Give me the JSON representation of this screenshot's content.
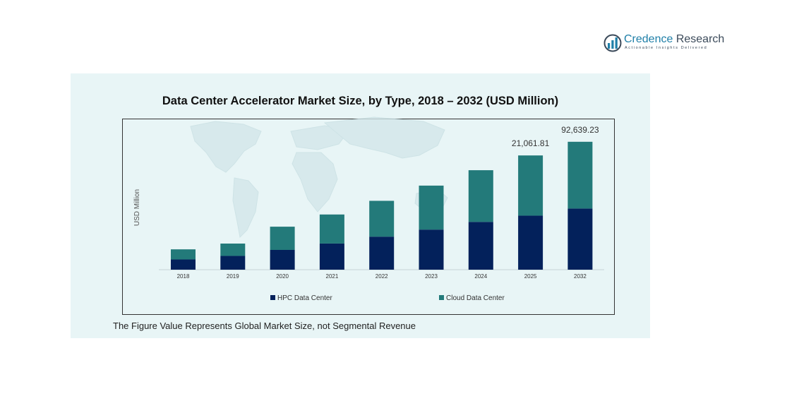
{
  "brand": {
    "name_part1": "Credence",
    "name_part2": "Research",
    "tagline": "Actionable Insights Delivered",
    "colors": {
      "accent": "#1f7fa8",
      "text": "#3b4a5a"
    }
  },
  "footnote": "The Figure Value Represents Global Market Size, not Segmental Revenue",
  "chart_data": {
    "type": "bar",
    "stacked": true,
    "title": "Data Center Accelerator Market Size, by Type, 2018 – 2032 (USD Million)",
    "ylabel": "USD Million",
    "xlabel": "",
    "categories": [
      "2018",
      "2019",
      "2020",
      "2021",
      "2022",
      "2023",
      "2024",
      "2025",
      "2032"
    ],
    "series": [
      {
        "name": "HPC Data Center",
        "color": "#03215b",
        "values": [
          1600,
          2150,
          3080,
          4080,
          5150,
          6250,
          7450,
          8420,
          9530
        ]
      },
      {
        "name": "Cloud Data Center",
        "color": "#237a7a",
        "values": [
          1570,
          1920,
          3620,
          4520,
          5580,
          6850,
          8050,
          9380,
          10400
        ]
      }
    ],
    "data_labels": [
      {
        "category": "2025",
        "text": "21,061.81"
      },
      {
        "category": "2032",
        "text": "92,639.23"
      }
    ],
    "ylim": [
      0,
      22000
    ],
    "legend_position": "bottom",
    "grid": false
  }
}
